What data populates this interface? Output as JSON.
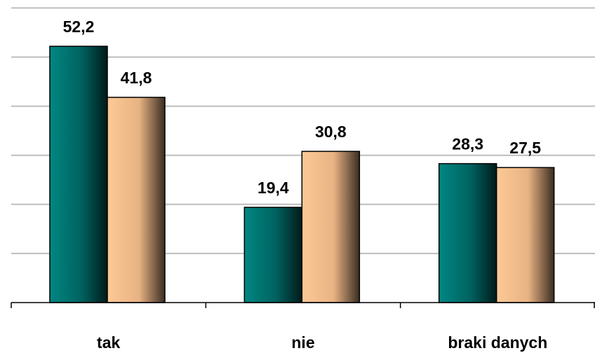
{
  "chart_data": {
    "type": "bar",
    "categories": [
      "tak",
      "nie",
      "braki danych"
    ],
    "series": [
      {
        "values": [
          52.2,
          19.4,
          28.3
        ],
        "labels": [
          "52,2",
          "19,4",
          "28,3"
        ],
        "color": "#007a78"
      },
      {
        "values": [
          41.8,
          30.8,
          27.5
        ],
        "labels": [
          "41,8",
          "30,8",
          "27,5"
        ],
        "color": "#f7c08f"
      }
    ],
    "ylim": [
      0,
      60
    ],
    "gridlines": [
      10,
      20,
      30,
      40,
      50,
      60
    ],
    "grid": true,
    "legend": "none"
  }
}
